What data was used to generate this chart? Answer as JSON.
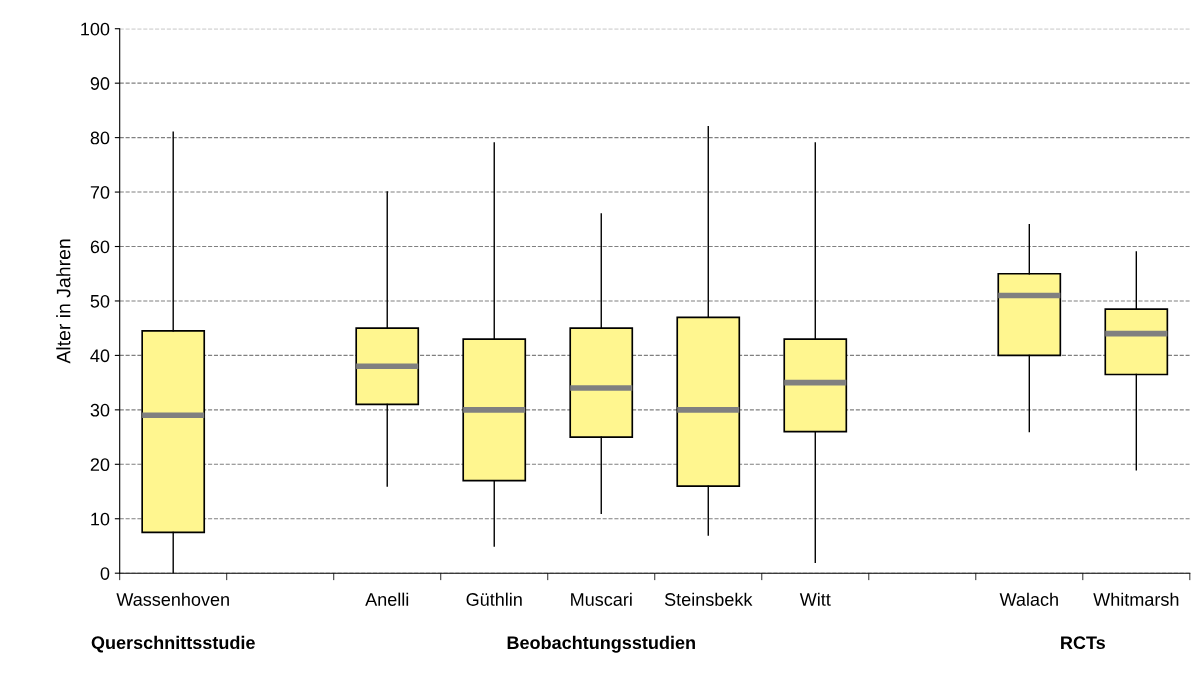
{
  "chart_data": {
    "type": "box",
    "ylabel": "Alter in Jahren",
    "categories": [
      "Wassenhoven",
      null,
      "Anelli",
      "Güthlin",
      "Muscari",
      "Steinsbekk",
      "Witt",
      null,
      "Walach",
      "Whitmarsh"
    ],
    "boxes": [
      {
        "low": 0,
        "q1": 7.5,
        "median": 29,
        "q3": 44.5,
        "high": 81
      },
      null,
      {
        "low": 16,
        "q1": 31,
        "median": 38,
        "q3": 45,
        "high": 70
      },
      {
        "low": 5,
        "q1": 17,
        "median": 30,
        "q3": 43,
        "high": 79
      },
      {
        "low": 11,
        "q1": 25,
        "median": 34,
        "q3": 45,
        "high": 66
      },
      {
        "low": 7,
        "q1": 16,
        "median": 30,
        "q3": 47,
        "high": 82
      },
      {
        "low": 2,
        "q1": 26,
        "median": 35,
        "q3": 43,
        "high": 79
      },
      null,
      {
        "low": 26,
        "q1": 40,
        "median": 51,
        "q3": 55,
        "high": 64
      },
      {
        "low": 19,
        "q1": 36.5,
        "median": 44,
        "q3": 48.5,
        "high": 59
      }
    ],
    "color": "#fff68f",
    "ylim": [
      0,
      100
    ],
    "yticks": [
      0,
      10,
      20,
      30,
      40,
      50,
      60,
      70,
      80,
      90,
      100
    ],
    "grid": "y",
    "line_style": "dashed",
    "annotations": [
      "Querschnittsstudie",
      "Beobachtungsstudien",
      "RCTs"
    ]
  }
}
